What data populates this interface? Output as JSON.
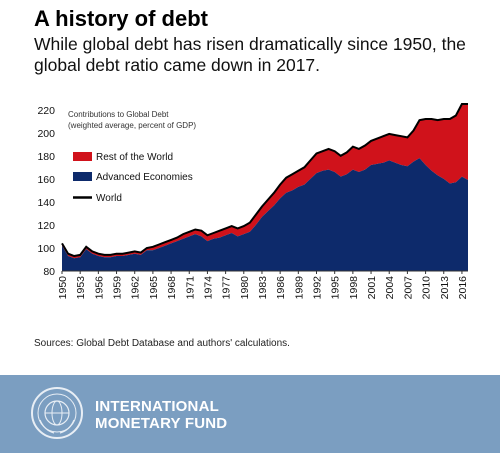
{
  "header": {
    "title": "A history of debt",
    "subtitle": "While global debt has risen dramatically since 1950, the global debt ratio came down in 2017."
  },
  "chart_data": {
    "type": "area",
    "title": "Contributions to Global Debt",
    "subtitle": "(weighted average, percent of GDP)",
    "ylim": [
      80,
      225
    ],
    "yticks": [
      80,
      100,
      120,
      140,
      160,
      180,
      200,
      220
    ],
    "xticks": [
      1950,
      1953,
      1956,
      1959,
      1962,
      1965,
      1968,
      1971,
      1974,
      1977,
      1980,
      1983,
      1986,
      1989,
      1992,
      1995,
      1998,
      2001,
      2004,
      2007,
      2010,
      2013,
      2016
    ],
    "grid": false,
    "legend_position": "top-left",
    "x": [
      1950,
      1951,
      1952,
      1953,
      1954,
      1955,
      1956,
      1957,
      1958,
      1959,
      1960,
      1961,
      1962,
      1963,
      1964,
      1965,
      1966,
      1967,
      1968,
      1969,
      1970,
      1971,
      1972,
      1973,
      1974,
      1975,
      1976,
      1977,
      1978,
      1979,
      1980,
      1981,
      1982,
      1983,
      1984,
      1985,
      1986,
      1987,
      1988,
      1989,
      1990,
      1991,
      1992,
      1993,
      1994,
      1995,
      1996,
      1997,
      1998,
      1999,
      2000,
      2001,
      2002,
      2003,
      2004,
      2005,
      2006,
      2007,
      2008,
      2009,
      2010,
      2011,
      2012,
      2013,
      2014,
      2015,
      2016,
      2017
    ],
    "series": [
      {
        "name": "Rest of the World",
        "color": "#d0121b",
        "values": [
          2,
          2,
          2,
          2,
          2,
          2,
          2,
          2,
          2,
          2,
          2,
          2,
          2,
          2,
          2,
          3,
          3,
          3,
          3,
          3,
          4,
          4,
          4,
          5,
          5,
          5,
          6,
          6,
          6,
          7,
          7,
          8,
          9,
          9,
          10,
          11,
          12,
          13,
          14,
          14,
          15,
          16,
          17,
          17,
          18,
          18,
          18,
          19,
          20,
          20,
          21,
          21,
          22,
          23,
          23,
          24,
          25,
          25,
          27,
          33,
          40,
          45,
          48,
          52,
          56,
          58,
          63,
          66
        ]
      },
      {
        "name": "Advanced Economies",
        "color": "#0d2a6b",
        "values": [
          102,
          93,
          91,
          92,
          99,
          95,
          93,
          92,
          92,
          93,
          93,
          94,
          95,
          94,
          98,
          98,
          100,
          102,
          104,
          106,
          108,
          110,
          112,
          110,
          106,
          108,
          109,
          111,
          113,
          110,
          112,
          114,
          120,
          127,
          132,
          137,
          143,
          148,
          150,
          153,
          155,
          160,
          165,
          167,
          168,
          166,
          162,
          164,
          168,
          166,
          168,
          172,
          173,
          174,
          176,
          174,
          172,
          171,
          175,
          178,
          172,
          167,
          163,
          160,
          156,
          157,
          162,
          159
        ]
      },
      {
        "name": "World",
        "color": "#000000",
        "values": [
          104,
          95,
          93,
          94,
          101,
          97,
          95,
          94,
          94,
          95,
          95,
          96,
          97,
          96,
          100,
          101,
          103,
          105,
          107,
          109,
          112,
          114,
          116,
          115,
          111,
          113,
          115,
          117,
          119,
          117,
          119,
          122,
          129,
          136,
          142,
          148,
          155,
          161,
          164,
          167,
          170,
          176,
          182,
          184,
          186,
          184,
          180,
          183,
          188,
          186,
          189,
          193,
          195,
          197,
          199,
          198,
          197,
          196,
          202,
          211,
          212,
          212,
          211,
          212,
          212,
          215,
          225,
          225
        ]
      }
    ]
  },
  "sources": "Sources: Global Debt Database and authors' calculations.",
  "footer": {
    "brand_color": "#7b9ec1",
    "org_line1": "INTERNATIONAL",
    "org_line2": "MONETARY FUND",
    "logo": "imf-seal-icon"
  }
}
